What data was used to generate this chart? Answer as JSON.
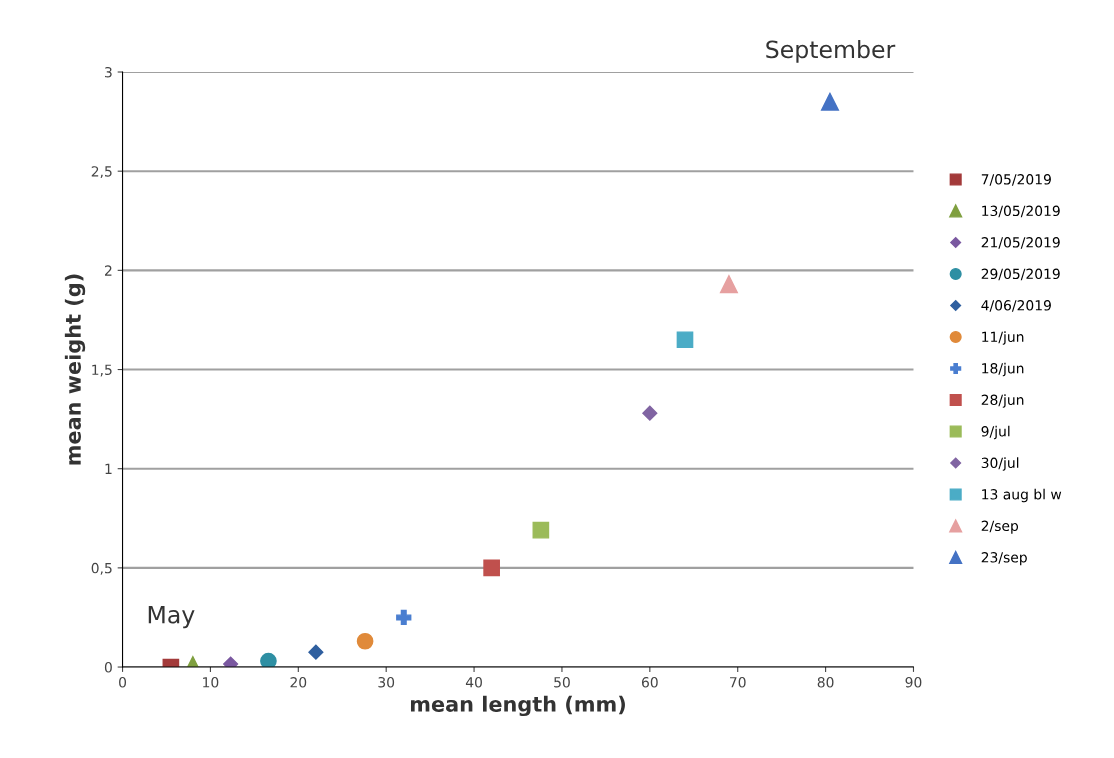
{
  "chart_data": {
    "type": "scatter",
    "xlabel": "mean length (mm)",
    "ylabel": "mean weight (g)",
    "xlim": [
      0,
      90
    ],
    "xticks": [
      0,
      10,
      20,
      30,
      40,
      50,
      60,
      70,
      80,
      90
    ],
    "ylim": [
      0,
      3
    ],
    "yticks": [
      {
        "value": 0,
        "label": "0"
      },
      {
        "value": 0.5,
        "label": "0,5"
      },
      {
        "value": 1,
        "label": "1"
      },
      {
        "value": 1.5,
        "label": "1,5"
      },
      {
        "value": 2,
        "label": "2"
      },
      {
        "value": 2.5,
        "label": "2,5"
      },
      {
        "value": 3,
        "label": "3"
      }
    ],
    "grid": "y",
    "legend": "right",
    "annotations": [
      {
        "text": "May",
        "x": 5.5,
        "y": 0
      },
      {
        "text": "September",
        "x": 80.5,
        "y": 2.85
      }
    ],
    "series": [
      {
        "name": "7/05/2019",
        "color": "#a33a3a",
        "marker": "square",
        "x": [
          5.5
        ],
        "values": [
          0
        ]
      },
      {
        "name": "13/05/2019",
        "color": "#7f9f3f",
        "marker": "triangle",
        "x": [
          8
        ],
        "values": [
          0.01
        ]
      },
      {
        "name": "21/05/2019",
        "color": "#7a58a0",
        "marker": "diamond",
        "x": [
          12.3
        ],
        "values": [
          0.015
        ]
      },
      {
        "name": "29/05/2019",
        "color": "#2e8fa3",
        "marker": "circle",
        "x": [
          16.6
        ],
        "values": [
          0.03
        ]
      },
      {
        "name": "4/06/2019",
        "color": "#2f5f9f",
        "marker": "diamond",
        "x": [
          22
        ],
        "values": [
          0.075
        ]
      },
      {
        "name": "11/jun",
        "color": "#e08a3a",
        "marker": "circle",
        "x": [
          27.6
        ],
        "values": [
          0.13
        ]
      },
      {
        "name": "18/jun",
        "color": "#4a7ed0",
        "marker": "cross",
        "x": [
          32
        ],
        "values": [
          0.25
        ]
      },
      {
        "name": "28/jun",
        "color": "#c0504d",
        "marker": "square",
        "x": [
          42
        ],
        "values": [
          0.5
        ]
      },
      {
        "name": "9/jul",
        "color": "#9bbb59",
        "marker": "square",
        "x": [
          47.6
        ],
        "values": [
          0.69
        ]
      },
      {
        "name": "30/jul",
        "color": "#8064a2",
        "marker": "diamond",
        "x": [
          60
        ],
        "values": [
          1.28
        ]
      },
      {
        "name": "13 aug bl w",
        "color": "#4bacc6",
        "marker": "square",
        "x": [
          64
        ],
        "values": [
          1.65
        ]
      },
      {
        "name": "2/sep",
        "color": "#e6a0a0",
        "marker": "triangle",
        "x": [
          69
        ],
        "values": [
          1.93
        ]
      },
      {
        "name": "23/sep",
        "color": "#4472c4",
        "marker": "triangle",
        "x": [
          80.5
        ],
        "values": [
          2.85
        ]
      }
    ]
  }
}
